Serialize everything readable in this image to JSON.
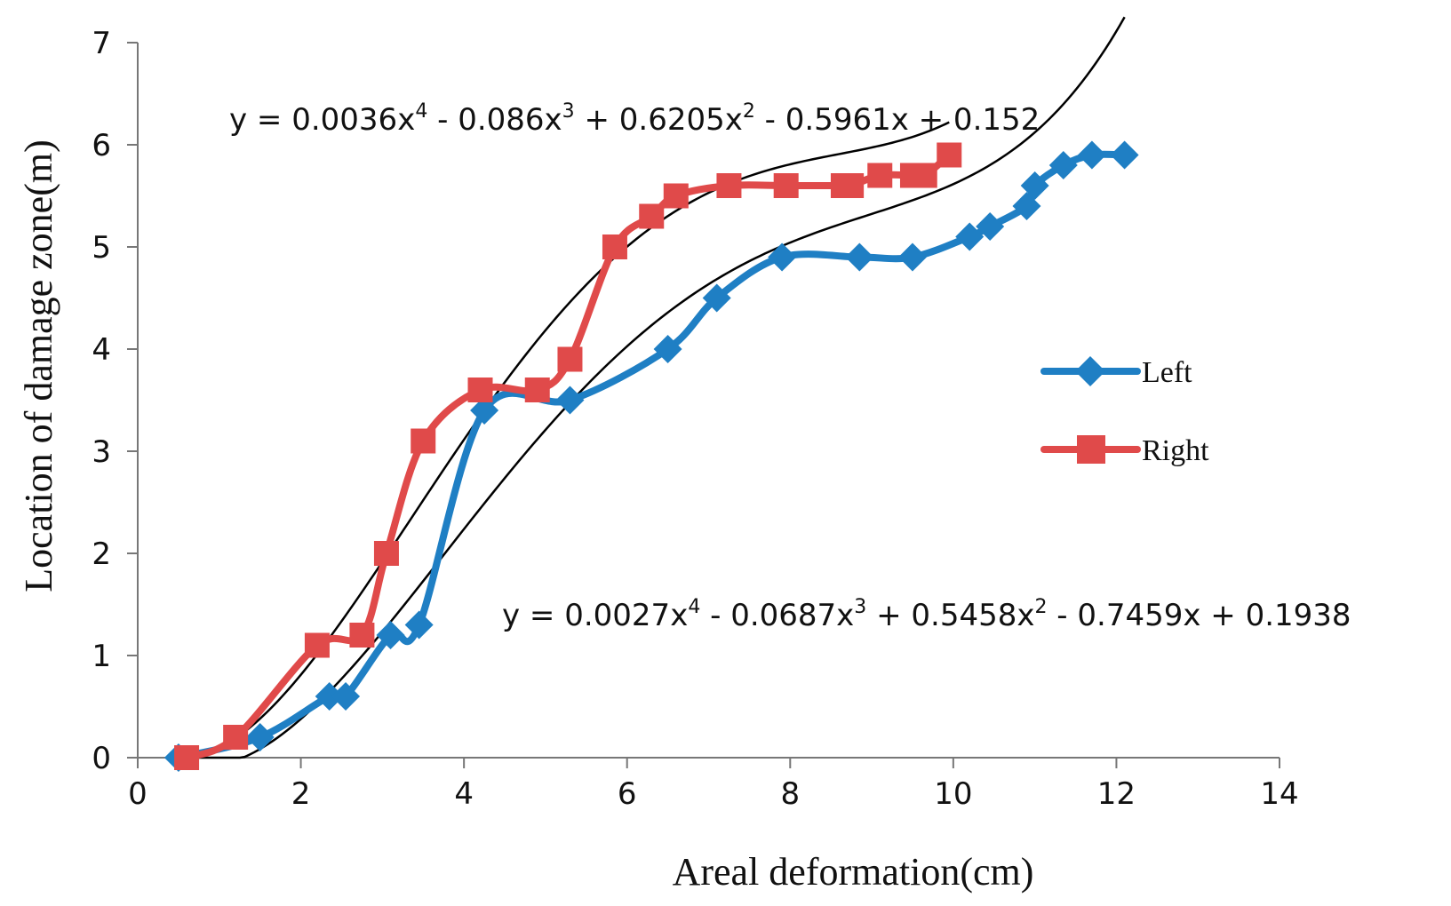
{
  "chart_data": {
    "type": "line",
    "title": "",
    "xlabel": "Areal deformation(cm)",
    "ylabel": "Location of damage zone(m)",
    "xlim": [
      0,
      14
    ],
    "ylim": [
      0,
      7
    ],
    "xticks": [
      0,
      2,
      4,
      6,
      8,
      10,
      12,
      14
    ],
    "yticks": [
      0,
      1,
      2,
      3,
      4,
      5,
      6,
      7
    ],
    "xtick_labels": [
      "0",
      "2",
      "4",
      "6",
      "8",
      "10",
      "12",
      "14"
    ],
    "ytick_labels": [
      "0",
      "1",
      "2",
      "3",
      "4",
      "5",
      "6",
      "7"
    ],
    "grid": false,
    "legend_position": "right",
    "series": [
      {
        "name": "Left",
        "color": "#1f7fc4",
        "marker": "diamond",
        "x": [
          0.5,
          1.5,
          2.35,
          2.55,
          3.1,
          3.45,
          4.25,
          5.3,
          6.5,
          7.1,
          7.9,
          8.85,
          9.5,
          10.2,
          10.45,
          10.9,
          11.0,
          11.35,
          11.7,
          12.1
        ],
        "y": [
          0.0,
          0.2,
          0.6,
          0.6,
          1.2,
          1.3,
          3.4,
          3.5,
          4.0,
          4.5,
          4.9,
          4.9,
          4.9,
          5.1,
          5.2,
          5.4,
          5.6,
          5.8,
          5.9,
          5.9
        ]
      },
      {
        "name": "Right",
        "color": "#e04a4a",
        "marker": "square",
        "x": [
          0.6,
          1.2,
          2.2,
          2.75,
          3.05,
          3.5,
          4.2,
          4.9,
          5.3,
          5.85,
          6.3,
          6.6,
          7.25,
          7.95,
          8.65,
          8.75,
          9.1,
          9.5,
          9.65,
          9.95
        ],
        "y": [
          0.0,
          0.2,
          1.1,
          1.2,
          2.0,
          3.1,
          3.6,
          3.6,
          3.9,
          5.0,
          5.3,
          5.5,
          5.6,
          5.6,
          5.6,
          5.6,
          5.7,
          5.7,
          5.7,
          5.9
        ]
      }
    ],
    "trendlines": [
      {
        "series": "Right",
        "type": "polynomial",
        "coefficients": [
          0.0036,
          -0.086,
          0.6205,
          -0.5961,
          0.152
        ],
        "x_range": [
          0.6,
          9.95
        ],
        "label": "y = 0.0036x4 - 0.086x3 + 0.6205x2 - 0.5961x + 0.152",
        "color": "#000000"
      },
      {
        "series": "Left",
        "type": "polynomial",
        "coefficients": [
          0.0027,
          -0.0687,
          0.5458,
          -0.7459,
          0.1938
        ],
        "x_range": [
          0.5,
          12.1
        ],
        "label": "y = 0.0027x4 - 0.0687x3 + 0.5458x2 - 0.7459x + 0.1938",
        "color": "#000000"
      }
    ]
  }
}
